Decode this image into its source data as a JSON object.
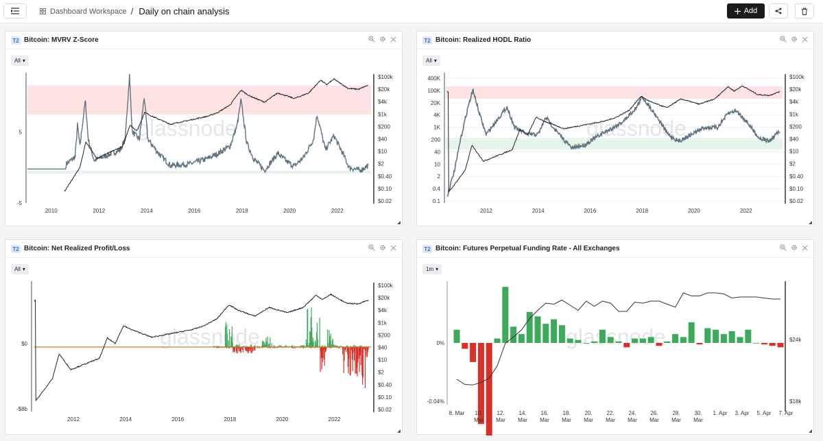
{
  "header": {
    "menu_icon": "menu-collapse-icon",
    "breadcrumb_icon": "dashboard-grid-icon",
    "breadcrumb_root": "Dashboard Workspace",
    "separator": "/",
    "page_title": "Daily on chain analysis",
    "add_label": "Add",
    "share_icon": "share-icon",
    "delete_icon": "trash-icon"
  },
  "panels": [
    {
      "badge": "T2",
      "title": "Bitcoin: MVRV Z-Score",
      "range": "All",
      "watermark": "glassnode",
      "left_axis": [
        {
          "v": 10,
          "label": "5"
        },
        {
          "v": 0,
          "label": "-5"
        }
      ],
      "right_axis": [
        "$100k",
        "$20k",
        "$4k",
        "$1k",
        "$200",
        "$40",
        "$10",
        "$2",
        "$0.40",
        "$0.10",
        "$0.02"
      ],
      "x_axis": [
        "2010",
        "2012",
        "2014",
        "2016",
        "2018",
        "2020",
        "2022"
      ]
    },
    {
      "badge": "T2",
      "title": "Bitcoin: Realized HODL Ratio",
      "range": "All",
      "watermark": "glassnode",
      "left_axis": [
        "400K",
        "100K",
        "20K",
        "4K",
        "1K",
        "200",
        "40",
        "10",
        "2",
        "0.4",
        "0.1"
      ],
      "right_axis": [
        "$100k",
        "$20k",
        "$4k",
        "$1k",
        "$200",
        "$40",
        "$10",
        "$2",
        "$0.40",
        "$0.10",
        "$0.02"
      ],
      "x_axis": [
        "2012",
        "2014",
        "2016",
        "2018",
        "2020",
        "2022"
      ]
    },
    {
      "badge": "T2",
      "title": "Bitcoin: Net Realized Profit/Loss",
      "range": "All",
      "watermark": "glassnode",
      "left_axis": [
        "$0",
        "-$8b"
      ],
      "right_axis": [
        "$100k",
        "$20k",
        "$4k",
        "$1k",
        "$200",
        "$40",
        "$10",
        "$2",
        "$0.40",
        "$0.10",
        "$0.02"
      ],
      "x_axis": [
        "2012",
        "2014",
        "2016",
        "2018",
        "2020",
        "2022"
      ]
    },
    {
      "badge": "T2",
      "title": "Bitcoin: Futures Perpetual Funding Rate - All Exchanges",
      "range": "1m",
      "watermark": "glassnode",
      "left_axis": [
        "0%",
        "-0.04%"
      ],
      "right_axis": [
        "$24k",
        "$18k"
      ],
      "x_axis": [
        [
          "8. Mar",
          ""
        ],
        [
          "10.",
          "Mar"
        ],
        [
          "12.",
          "Mar"
        ],
        [
          "14.",
          "Mar"
        ],
        [
          "16.",
          "Mar"
        ],
        [
          "18.",
          "Mar"
        ],
        [
          "20.",
          "Mar"
        ],
        [
          "22.",
          "Mar"
        ],
        [
          "24.",
          "Mar"
        ],
        [
          "26.",
          "Mar"
        ],
        [
          "28.",
          "Mar"
        ],
        [
          "30.",
          "Mar"
        ],
        [
          "1. Apr",
          ""
        ],
        [
          "3. Apr",
          ""
        ],
        [
          "5. Apr",
          ""
        ],
        [
          "7. Apr",
          ""
        ]
      ],
      "funding_rates": [
        0.009,
        -0.004,
        -0.013,
        -0.055,
        -0.078,
        0.003,
        0.038,
        0.011,
        0.006,
        0.021,
        0.018,
        0.013,
        0.016,
        0.012,
        0.003,
        0.002,
        0.0,
        0.001,
        0.009,
        0.004,
        0.001,
        -0.003,
        0.003,
        0.003,
        0.004,
        -0.002,
        0.001,
        0.006,
        0.004,
        0.014,
        -0.001,
        0.01,
        0.009,
        0.006,
        0.008,
        0.004,
        0.009,
        0.0,
        -0.001,
        -0.002,
        -0.003
      ],
      "price": [
        20200,
        19700,
        19650,
        19900,
        20300,
        21500,
        23700,
        24300,
        25000,
        26100,
        26900,
        27600,
        27500,
        27900,
        27400,
        26900,
        27800,
        27300,
        27800,
        27600,
        26800,
        26800,
        27700,
        27600,
        27800,
        27800,
        27500,
        27200,
        28600,
        28300,
        28300,
        28600,
        28600,
        28500,
        28100,
        28200,
        28200,
        28200,
        28100,
        28000,
        28000
      ]
    }
  ],
  "colors": {
    "price_line": "#222222",
    "metric_line": "#5e7380",
    "profit": "#3caa5a",
    "loss": "#d9302a",
    "upper_band": "#fde3e3",
    "lower_band": "#e6f4ea",
    "zero_line": "#d27a2c"
  }
}
